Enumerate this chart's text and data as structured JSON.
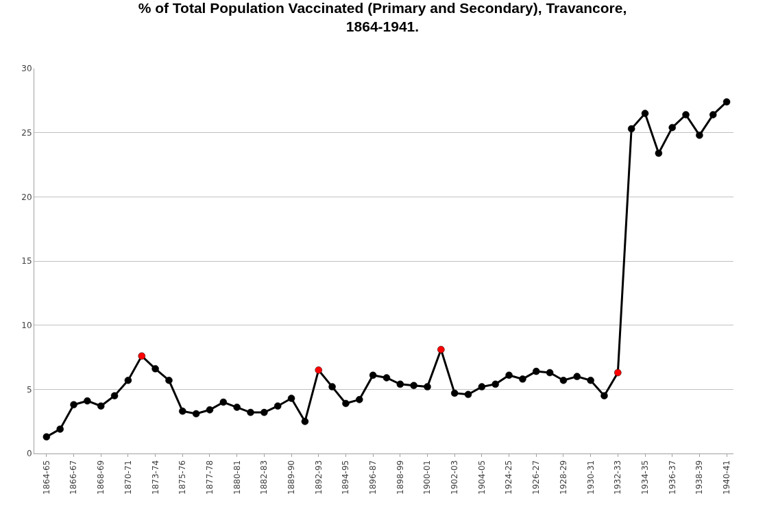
{
  "chart_data": {
    "type": "line",
    "title": "% of Total Population Vaccinated (Primary and Secondary), Travancore,\n1864-1941.",
    "categories": [
      "1864-65",
      null,
      "1866-67",
      null,
      "1868-69",
      null,
      "1870-71",
      null,
      "1873-74",
      null,
      "1875-76",
      null,
      "1877-78",
      null,
      "1880-81",
      null,
      "1882-83",
      null,
      "1889-90",
      null,
      "1892-93",
      null,
      "1894-95",
      null,
      "1896-87",
      null,
      "1898-99",
      null,
      "1900-01",
      null,
      "1902-03",
      null,
      "1904-05",
      null,
      "1924-25",
      null,
      "1926-27",
      null,
      "1928-29",
      null,
      "1930-31",
      null,
      "1932-33",
      null,
      "1934-35",
      null,
      "1936-37",
      null,
      "1938-39",
      null,
      "1940-41"
    ],
    "series": [
      {
        "color": "#000000",
        "colors": [
          "#000000",
          "#000000",
          "#000000",
          "#000000",
          "#000000",
          "#000000",
          "#000000",
          "#ff0000",
          "#000000",
          "#000000",
          "#000000",
          "#000000",
          "#000000",
          "#000000",
          "#000000",
          "#000000",
          "#000000",
          "#000000",
          "#000000",
          "#000000",
          "#ff0000",
          "#000000",
          "#000000",
          "#000000",
          "#000000",
          "#000000",
          "#000000",
          "#000000",
          "#000000",
          "#ff0000",
          "#000000",
          "#000000",
          "#000000",
          "#000000",
          "#000000",
          "#000000",
          "#000000",
          "#000000",
          "#000000",
          "#000000",
          "#000000",
          "#000000",
          "#ff0000",
          "#000000",
          "#000000",
          "#000000",
          "#000000",
          "#000000",
          "#000000",
          "#000000",
          "#000000"
        ],
        "values": [
          1.3,
          1.9,
          3.8,
          4.1,
          3.7,
          4.5,
          5.7,
          7.6,
          6.6,
          5.7,
          3.3,
          3.1,
          3.4,
          4.0,
          3.6,
          3.2,
          3.2,
          3.7,
          4.3,
          2.5,
          6.5,
          5.2,
          3.9,
          4.2,
          6.1,
          5.9,
          5.4,
          5.3,
          5.2,
          8.1,
          4.7,
          4.6,
          5.2,
          5.4,
          6.1,
          5.8,
          6.4,
          6.3,
          5.7,
          6.0,
          5.7,
          4.5,
          6.3,
          25.3,
          26.5,
          23.4,
          25.4,
          26.4,
          24.8,
          26.4,
          27.4
        ]
      }
    ],
    "ylim": [
      0,
      30
    ],
    "yticks": [
      0,
      5,
      10,
      15,
      20,
      25,
      30
    ],
    "grid": "y",
    "legend": false,
    "marker": "circle",
    "line_style": "solid"
  }
}
